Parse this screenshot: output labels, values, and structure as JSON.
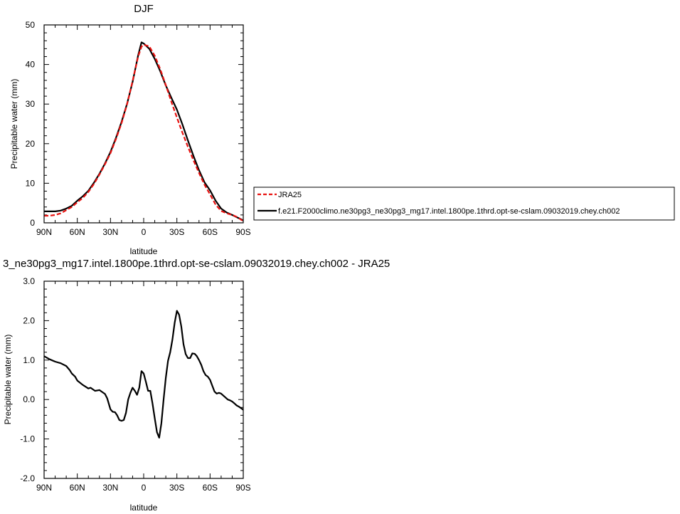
{
  "chart_data": [
    {
      "type": "line",
      "title": "DJF",
      "xlabel": "latitude",
      "ylabel": "Precipitable water (mm)",
      "xlim": [
        90,
        -90
      ],
      "ylim": [
        0,
        50
      ],
      "xticks": [
        {
          "value": 90,
          "label": "90N"
        },
        {
          "value": 60,
          "label": "60N"
        },
        {
          "value": 30,
          "label": "30N"
        },
        {
          "value": 0,
          "label": "0"
        },
        {
          "value": -30,
          "label": "30S"
        },
        {
          "value": -60,
          "label": "60S"
        },
        {
          "value": -90,
          "label": "90S"
        }
      ],
      "yticks": [
        {
          "value": 0,
          "label": "0"
        },
        {
          "value": 10,
          "label": "10"
        },
        {
          "value": 20,
          "label": "20"
        },
        {
          "value": 30,
          "label": "30"
        },
        {
          "value": 40,
          "label": "40"
        },
        {
          "value": 50,
          "label": "50"
        }
      ],
      "legend": {
        "placement": "right",
        "entries": [
          {
            "label": "JRA25",
            "color": "#e8110f",
            "dash": "dashed"
          },
          {
            "label": "f.e21.F2000climo.ne30pg3_ne30pg3_mg17.intel.1800pe.1thrd.opt-se-cslam.09032019.chey.ch002",
            "color": "#000000",
            "dash": "solid"
          }
        ]
      },
      "series": [
        {
          "name": "JRA25",
          "color": "#e8110f",
          "dash": "dashed",
          "x": [
            90,
            85,
            80,
            75,
            70,
            65,
            60,
            55,
            50,
            45,
            40,
            35,
            30,
            25,
            20,
            15,
            10,
            5,
            2,
            0,
            -5,
            -10,
            -15,
            -20,
            -25,
            -30,
            -35,
            -40,
            -45,
            -50,
            -55,
            -60,
            -65,
            -70,
            -75,
            -80,
            -85,
            -88,
            -90
          ],
          "y": [
            1.8,
            1.8,
            2.0,
            2.4,
            3.2,
            4.0,
            5.2,
            6.3,
            7.8,
            9.8,
            12.2,
            14.8,
            17.6,
            21.2,
            25.2,
            30.0,
            35.8,
            42.0,
            44.5,
            45.0,
            44.6,
            42.2,
            38.8,
            34.8,
            30.6,
            26.6,
            22.8,
            19.2,
            15.8,
            12.6,
            9.6,
            7.2,
            4.6,
            3.0,
            2.4,
            2.0,
            1.4,
            0.8,
            0.5
          ]
        },
        {
          "name": "f.e21.F2000climo.ne30pg3_ne30pg3_mg17.intel.1800pe.1thrd.opt-se-cslam.09032019.chey.ch002",
          "color": "#000000",
          "dash": "solid",
          "x": [
            90,
            85,
            80,
            75,
            70,
            65,
            60,
            55,
            50,
            45,
            40,
            35,
            30,
            25,
            20,
            15,
            10,
            5,
            2,
            0,
            -5,
            -10,
            -15,
            -20,
            -25,
            -30,
            -35,
            -40,
            -45,
            -50,
            -55,
            -60,
            -65,
            -70,
            -75,
            -80,
            -85,
            -88,
            -90
          ],
          "y": [
            2.9,
            2.9,
            2.9,
            3.1,
            3.6,
            4.3,
            5.6,
            6.7,
            8.1,
            10.1,
            12.4,
            15.0,
            17.9,
            21.5,
            25.5,
            30.1,
            35.6,
            42.3,
            45.6,
            45.3,
            44.0,
            41.4,
            38.3,
            34.7,
            31.6,
            28.6,
            24.9,
            20.8,
            16.9,
            13.3,
            10.2,
            8.2,
            5.6,
            3.6,
            2.6,
            2.0,
            1.3,
            0.9,
            0.6
          ]
        }
      ]
    },
    {
      "type": "line",
      "title": "3_ne30pg3_mg17.intel.1800pe.1thrd.opt-se-cslam.09032019.chey.ch002 - JRA25",
      "xlabel": "latitude",
      "ylabel": "Precipitable water (mm)",
      "xlim": [
        90,
        -90
      ],
      "ylim": [
        -2.0,
        3.0
      ],
      "xticks": [
        {
          "value": 90,
          "label": "90N"
        },
        {
          "value": 60,
          "label": "60N"
        },
        {
          "value": 30,
          "label": "30N"
        },
        {
          "value": 0,
          "label": "0"
        },
        {
          "value": -30,
          "label": "30S"
        },
        {
          "value": -60,
          "label": "60S"
        },
        {
          "value": -90,
          "label": "90S"
        }
      ],
      "yticks": [
        {
          "value": -2.0,
          "label": "-2.0"
        },
        {
          "value": -1.0,
          "label": "-1.0"
        },
        {
          "value": 0.0,
          "label": "0.0"
        },
        {
          "value": 1.0,
          "label": "1.0"
        },
        {
          "value": 2.0,
          "label": "2.0"
        },
        {
          "value": 3.0,
          "label": "3.0"
        }
      ],
      "series": [
        {
          "color": "#000000",
          "dash": "solid",
          "x": [
            90,
            85,
            80,
            75,
            70,
            67,
            65,
            62,
            60,
            55,
            50,
            48,
            44,
            40,
            38,
            35,
            33,
            30,
            28,
            26,
            24,
            22,
            20,
            18,
            16,
            14,
            12,
            10,
            8,
            6,
            4,
            2,
            0,
            -2,
            -4,
            -6,
            -8,
            -10,
            -12,
            -14,
            -16,
            -18,
            -20,
            -22,
            -24,
            -26,
            -28,
            -30,
            -32,
            -34,
            -36,
            -38,
            -40,
            -42,
            -44,
            -46,
            -48,
            -50,
            -52,
            -54,
            -56,
            -58,
            -60,
            -62,
            -64,
            -66,
            -68,
            -70,
            -72,
            -74,
            -76,
            -78,
            -80,
            -82,
            -84,
            -86,
            -88,
            -90
          ],
          "y": [
            1.1,
            1.02,
            0.96,
            0.92,
            0.85,
            0.75,
            0.66,
            0.58,
            0.48,
            0.37,
            0.28,
            0.3,
            0.22,
            0.24,
            0.2,
            0.14,
            0.03,
            -0.25,
            -0.31,
            -0.32,
            -0.4,
            -0.52,
            -0.54,
            -0.52,
            -0.34,
            0.0,
            0.17,
            0.3,
            0.22,
            0.12,
            0.3,
            0.72,
            0.66,
            0.45,
            0.22,
            0.22,
            -0.1,
            -0.48,
            -0.83,
            -0.97,
            -0.6,
            0.0,
            0.55,
            0.98,
            1.2,
            1.52,
            1.95,
            2.25,
            2.15,
            1.85,
            1.4,
            1.15,
            1.05,
            1.05,
            1.17,
            1.16,
            1.1,
            1.0,
            0.88,
            0.72,
            0.62,
            0.58,
            0.5,
            0.35,
            0.2,
            0.15,
            0.17,
            0.15,
            0.1,
            0.05,
            0.0,
            -0.02,
            -0.05,
            -0.1,
            -0.15,
            -0.18,
            -0.22,
            -0.26
          ]
        }
      ]
    }
  ]
}
